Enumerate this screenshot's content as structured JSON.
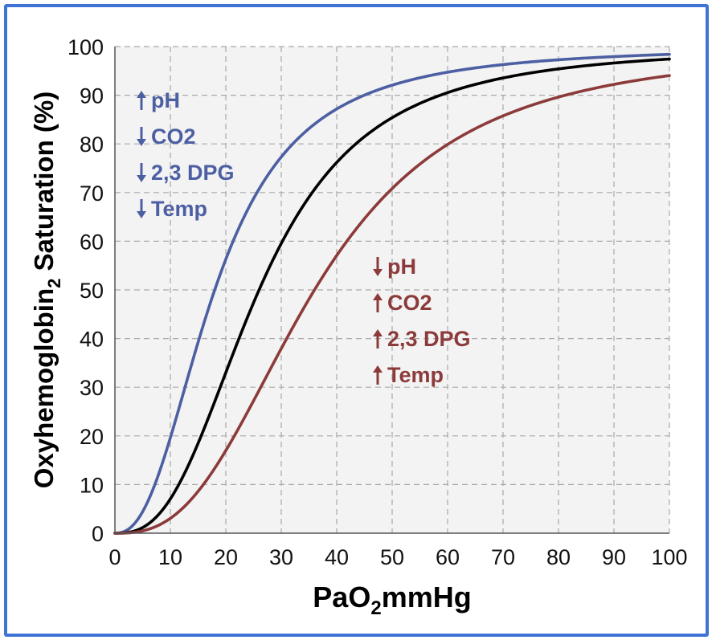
{
  "chart_data": {
    "type": "line",
    "xlabel": {
      "main": "PaO",
      "sub": "2",
      "rest": "mmHg"
    },
    "ylabel": {
      "main": "Oxyhemoglobin",
      "sub": "2",
      "rest": " Saturation (%)"
    },
    "xlim": [
      0,
      100
    ],
    "ylim": [
      0,
      100
    ],
    "xticks": [
      0,
      10,
      20,
      30,
      40,
      50,
      60,
      70,
      80,
      90,
      100
    ],
    "yticks": [
      0,
      10,
      20,
      30,
      40,
      50,
      60,
      70,
      80,
      90,
      100
    ],
    "grid": true,
    "series": [
      {
        "name": "left-shift",
        "color": "#4d5fa3",
        "p50": 18,
        "n": 2.4
      },
      {
        "name": "normal",
        "color": "#000000",
        "p50": 26,
        "n": 2.7
      },
      {
        "name": "right-shift",
        "color": "#8c3a3a",
        "p50": 36,
        "n": 2.7
      }
    ],
    "annotations": [
      {
        "name": "left-shift-factors",
        "color": "#4d5fa3",
        "items": [
          {
            "arrow": "up",
            "label": "pH"
          },
          {
            "arrow": "down",
            "label": "CO2"
          },
          {
            "arrow": "down",
            "label": "2,3 DPG"
          },
          {
            "arrow": "down",
            "label": "Temp"
          }
        ]
      },
      {
        "name": "right-shift-factors",
        "color": "#8c3a3a",
        "items": [
          {
            "arrow": "down",
            "label": "pH"
          },
          {
            "arrow": "up",
            "label": "CO2"
          },
          {
            "arrow": "up",
            "label": "2,3 DPG"
          },
          {
            "arrow": "up",
            "label": "Temp"
          }
        ]
      }
    ]
  },
  "colors": {
    "frame": "#3f74d6",
    "plot_bg": "#f3f3f3",
    "grid": "#a9a9a9"
  }
}
